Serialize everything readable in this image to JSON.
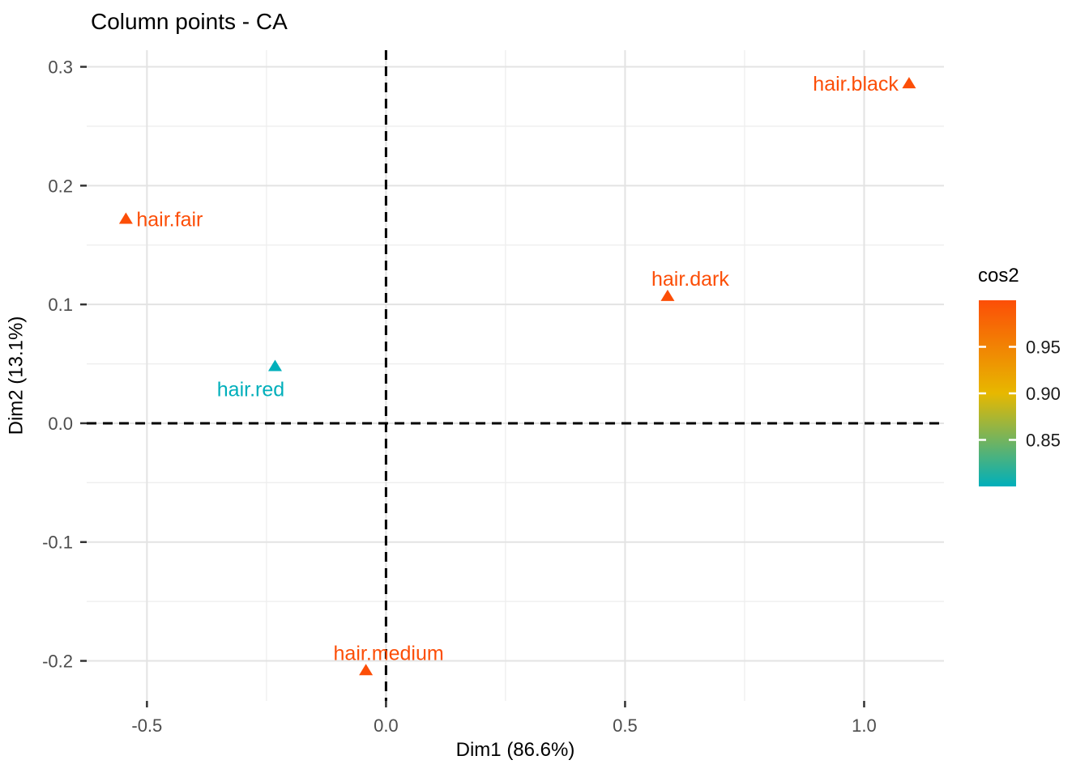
{
  "chart_data": {
    "type": "scatter",
    "title": "Column points - CA",
    "xlabel": "Dim1 (86.6%)",
    "ylabel": "Dim2 (13.1%)",
    "xlim": [
      -0.626,
      1.167
    ],
    "ylim": [
      -0.2337,
      0.314
    ],
    "grid": true,
    "point_shape": "triangle-up",
    "x_ticks": [
      -0.5,
      0.0,
      0.5,
      1.0
    ],
    "x_tick_labels": [
      "-0.5",
      "0.0",
      "0.5",
      "1.0"
    ],
    "x_minor_ticks": [
      -0.25,
      0.25,
      0.75
    ],
    "y_ticks": [
      0.3,
      0.2,
      0.1,
      0.0,
      -0.1,
      -0.2
    ],
    "y_tick_labels": [
      "0.3",
      "0.2",
      "0.1",
      "0.0",
      "-0.1",
      "-0.2"
    ],
    "y_minor_ticks": [
      0.25,
      0.15,
      0.05,
      -0.05,
      -0.15
    ],
    "zero_lines": {
      "x": 0.0,
      "y": 0.0,
      "style": "dashed",
      "color": "#000000"
    },
    "points": [
      {
        "label": "hair.fair",
        "x": -0.544,
        "y": 0.172,
        "cos2": 0.98,
        "color": "#FC4E07",
        "label_side": "right"
      },
      {
        "label": "hair.red",
        "x": -0.232,
        "y": 0.048,
        "cos2": 0.8,
        "color": "#00AFBB",
        "label_side": "below-left"
      },
      {
        "label": "hair.medium",
        "x": -0.042,
        "y": -0.208,
        "cos2": 0.97,
        "color": "#FC4E07",
        "label_side": "above"
      },
      {
        "label": "hair.dark",
        "x": 0.589,
        "y": 0.107,
        "cos2": 0.98,
        "color": "#FC4E07",
        "label_side": "above"
      },
      {
        "label": "hair.black",
        "x": 1.094,
        "y": 0.286,
        "cos2": 0.98,
        "color": "#FC4E07",
        "label_side": "left"
      }
    ],
    "legend": {
      "title": "cos2",
      "position": "right",
      "type": "colorbar",
      "range": [
        0.8,
        1.0
      ],
      "ticks": [
        0.95,
        0.9,
        0.85
      ],
      "tick_labels": [
        "0.95",
        "0.90",
        "0.85"
      ],
      "gradient": [
        {
          "value": 1.0,
          "color": "#FC4E07"
        },
        {
          "value": 0.9,
          "color": "#E7B800"
        },
        {
          "value": 0.8,
          "color": "#00AFBB"
        }
      ]
    },
    "colors": {
      "background": "#FFFFFF",
      "grid_major": "#E3E3E3",
      "grid_minor": "#EEEEEE",
      "axis_tick": "#333333",
      "tick_label": "#4D4D4D",
      "title_text": "#000000",
      "legend_label": "#1A1A1A"
    }
  }
}
